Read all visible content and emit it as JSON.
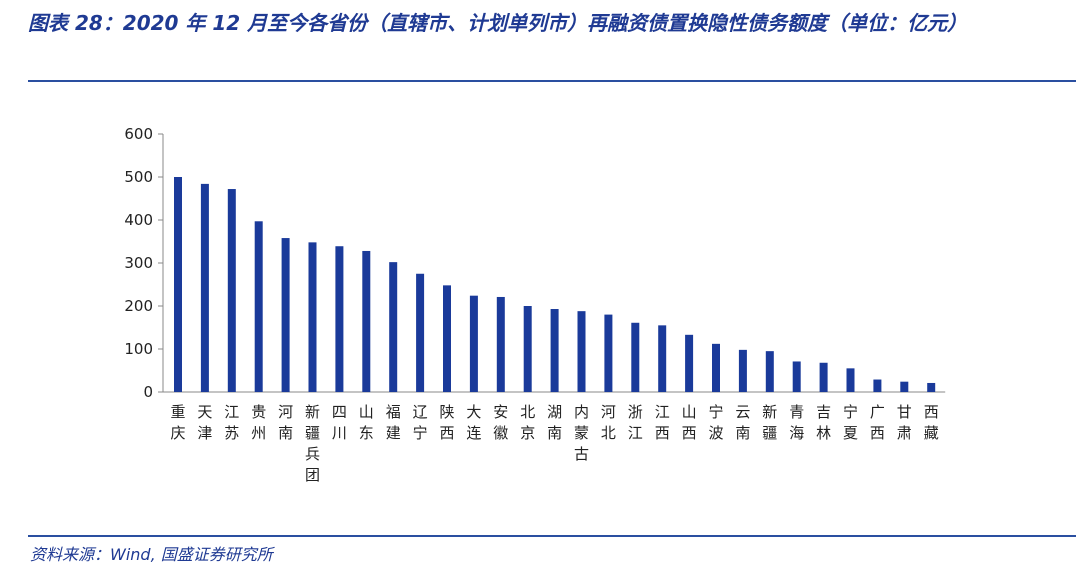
{
  "title": "图表 28：2020 年 12 月至今各省份（直辖市、计划单列市）再融资债置换隐性债务额度（单位：亿元）",
  "source": "资料来源：Wind, 国盛证券研究所",
  "colors": {
    "bar": "#1a3a9a",
    "title": "#1f3a93",
    "rule": "#2a4fa0"
  },
  "chart_data": {
    "type": "bar",
    "title": "",
    "xlabel": "",
    "ylabel": "",
    "ylim": [
      0,
      600
    ],
    "yticks": [
      0,
      100,
      200,
      300,
      400,
      500,
      600
    ],
    "grid": false,
    "categories": [
      "重庆",
      "天津",
      "江苏",
      "贵州",
      "河南",
      "新疆兵团",
      "四川",
      "山东",
      "福建",
      "辽宁",
      "陕西",
      "大连",
      "安徽",
      "北京",
      "湖南",
      "内蒙古",
      "河北",
      "浙江",
      "江西",
      "山西",
      "宁波",
      "云南",
      "新疆",
      "青海",
      "吉林",
      "宁夏",
      "广西",
      "甘肃",
      "西藏"
    ],
    "values": [
      500,
      484,
      472,
      397,
      358,
      348,
      339,
      328,
      302,
      275,
      248,
      224,
      221,
      200,
      193,
      188,
      180,
      161,
      155,
      133,
      112,
      98,
      95,
      71,
      68,
      55,
      29,
      24,
      21
    ]
  }
}
